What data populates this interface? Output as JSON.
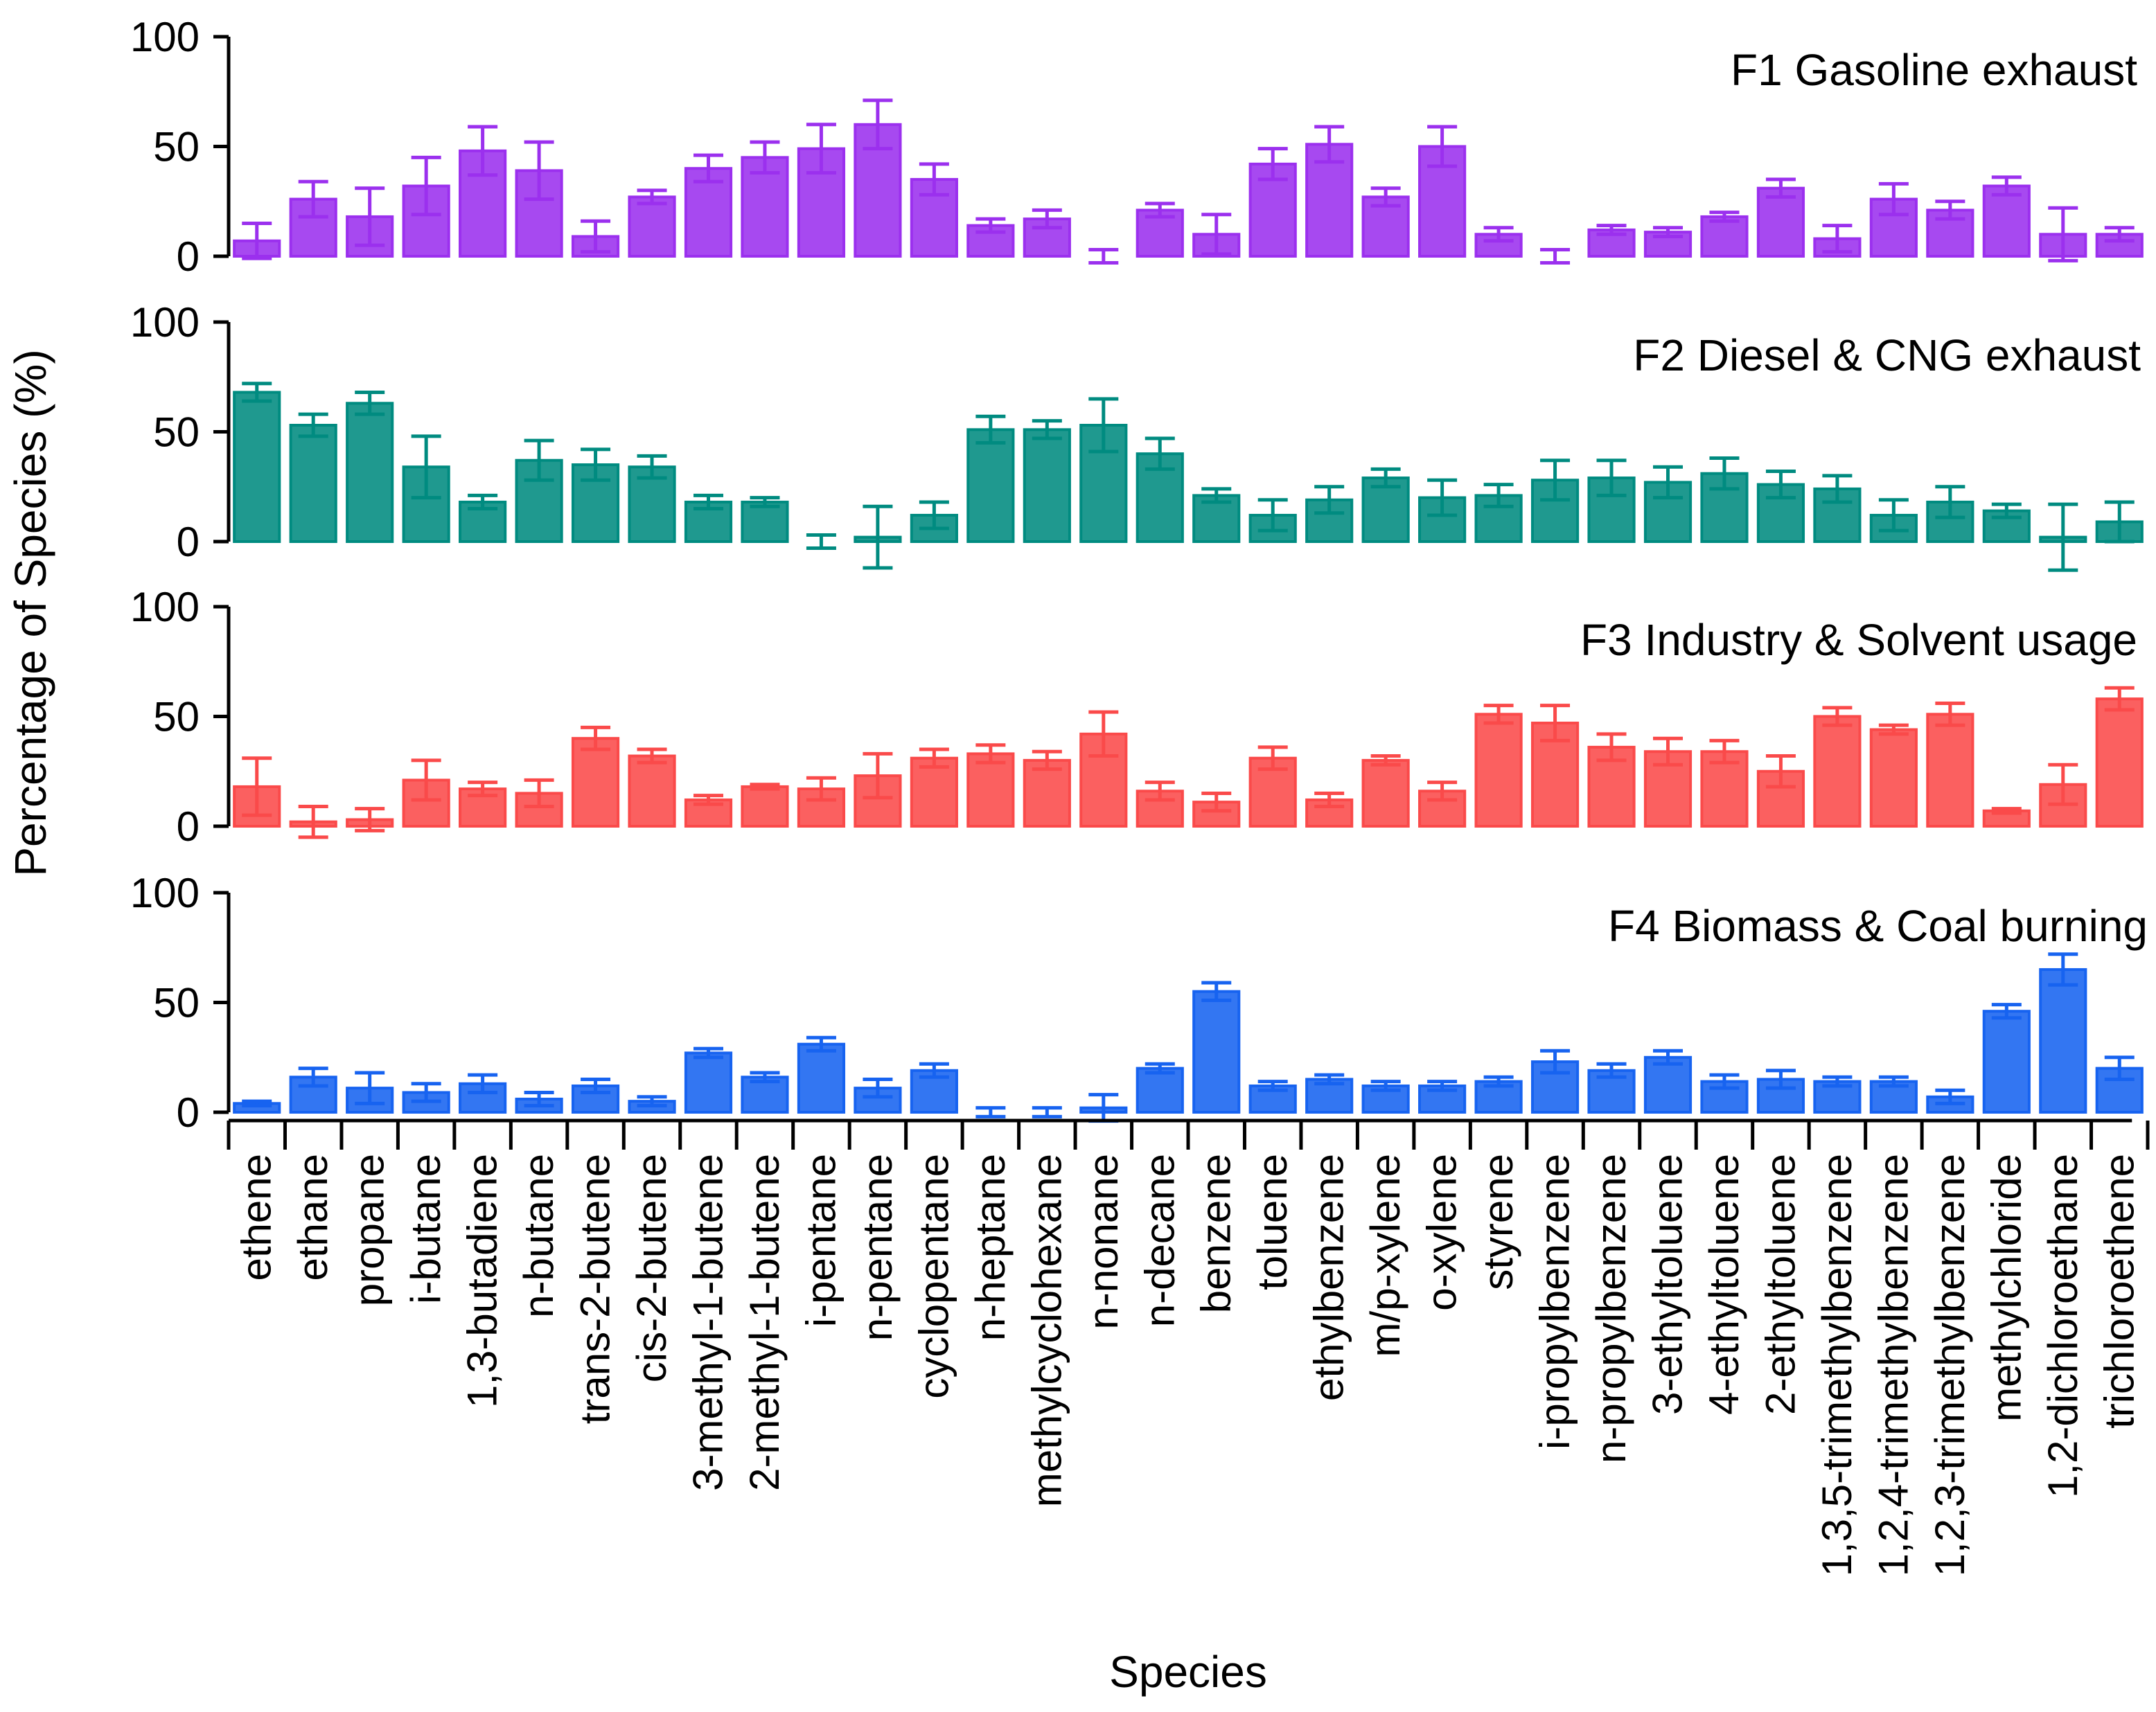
{
  "chart_data": {
    "type": "bar",
    "ylabel": "Percentage of Species (%)",
    "xlabel": "Species",
    "ylim": [
      0,
      100
    ],
    "yticks": [
      0,
      50,
      100
    ],
    "categories": [
      "ethene",
      "ethane",
      "propane",
      "i-butane",
      "1,3-butadiene",
      "n-butane",
      "trans-2-butene",
      "cis-2-butene",
      "3-methyl-1-butene",
      "2-methyl-1-butene",
      "i-pentane",
      "n-pentane",
      "cyclopentane",
      "n-heptane",
      "methylcyclohexane",
      "n-nonane",
      "n-decane",
      "benzene",
      "toluene",
      "ethylbenzene",
      "m/p-xylene",
      "o-xylene",
      "styrene",
      "i-propylbenzene",
      "n-propylbenzene",
      "3-ethyltoluene",
      "4-ethyltoluene",
      "2-ethyltoluene",
      "1,3,5-trimethylbenzene",
      "1,2,4-trimethylbenzene",
      "1,2,3-trimethylbenzene",
      "methylchloride",
      "1,2-dichloroethane",
      "trichloroethene"
    ],
    "series": [
      {
        "name": "F1 Gasoline exhaust",
        "color": "#9b30ee",
        "values": [
          7,
          26,
          18,
          32,
          48,
          39,
          9,
          27,
          40,
          45,
          49,
          60,
          35,
          14,
          17,
          0,
          21,
          10,
          42,
          51,
          27,
          50,
          10,
          0,
          12,
          11,
          18,
          31,
          8,
          26,
          21,
          32,
          10,
          10
        ],
        "errors": [
          8,
          8,
          13,
          13,
          11,
          13,
          7,
          3,
          6,
          7,
          11,
          11,
          7,
          3,
          4,
          3,
          3,
          9,
          7,
          8,
          4,
          9,
          3,
          3,
          2,
          2,
          2,
          4,
          6,
          7,
          4,
          4,
          12,
          3
        ]
      },
      {
        "name": "F2 Diesel & CNG exhaust",
        "color": "#008b80",
        "values": [
          68,
          53,
          63,
          34,
          18,
          37,
          35,
          34,
          18,
          18,
          0,
          2,
          12,
          51,
          51,
          53,
          40,
          21,
          12,
          19,
          29,
          20,
          21,
          28,
          29,
          27,
          31,
          26,
          24,
          12,
          18,
          14,
          2,
          9
        ],
        "errors": [
          4,
          5,
          5,
          14,
          3,
          9,
          7,
          5,
          3,
          2,
          3,
          14,
          6,
          6,
          4,
          12,
          7,
          3,
          7,
          6,
          4,
          8,
          5,
          9,
          8,
          7,
          7,
          6,
          6,
          7,
          7,
          3,
          15,
          9
        ]
      },
      {
        "name": "F3 Industry & Solvent usage",
        "color": "#fa4a4a",
        "values": [
          18,
          2,
          3,
          21,
          17,
          15,
          40,
          32,
          12,
          18,
          17,
          23,
          31,
          33,
          30,
          42,
          16,
          11,
          31,
          12,
          30,
          16,
          51,
          47,
          36,
          34,
          34,
          25,
          50,
          44,
          51,
          7,
          19,
          58
        ],
        "errors": [
          13,
          7,
          5,
          9,
          3,
          6,
          5,
          3,
          2,
          1,
          5,
          10,
          4,
          4,
          4,
          10,
          4,
          4,
          5,
          3,
          2,
          4,
          4,
          8,
          6,
          6,
          5,
          7,
          4,
          2,
          5,
          1,
          9,
          5
        ]
      },
      {
        "name": "F4 Biomass & Coal burning",
        "color": "#1763f0",
        "values": [
          4,
          16,
          11,
          9,
          13,
          6,
          12,
          5,
          27,
          16,
          31,
          11,
          19,
          0,
          0,
          2,
          20,
          55,
          12,
          15,
          12,
          12,
          14,
          23,
          19,
          25,
          14,
          15,
          14,
          14,
          7,
          46,
          65,
          20
        ],
        "errors": [
          1,
          4,
          7,
          4,
          4,
          3,
          3,
          2,
          2,
          2,
          3,
          4,
          3,
          2,
          2,
          6,
          2,
          4,
          2,
          2,
          2,
          2,
          2,
          5,
          3,
          3,
          3,
          4,
          2,
          2,
          3,
          3,
          7,
          5
        ]
      }
    ]
  }
}
